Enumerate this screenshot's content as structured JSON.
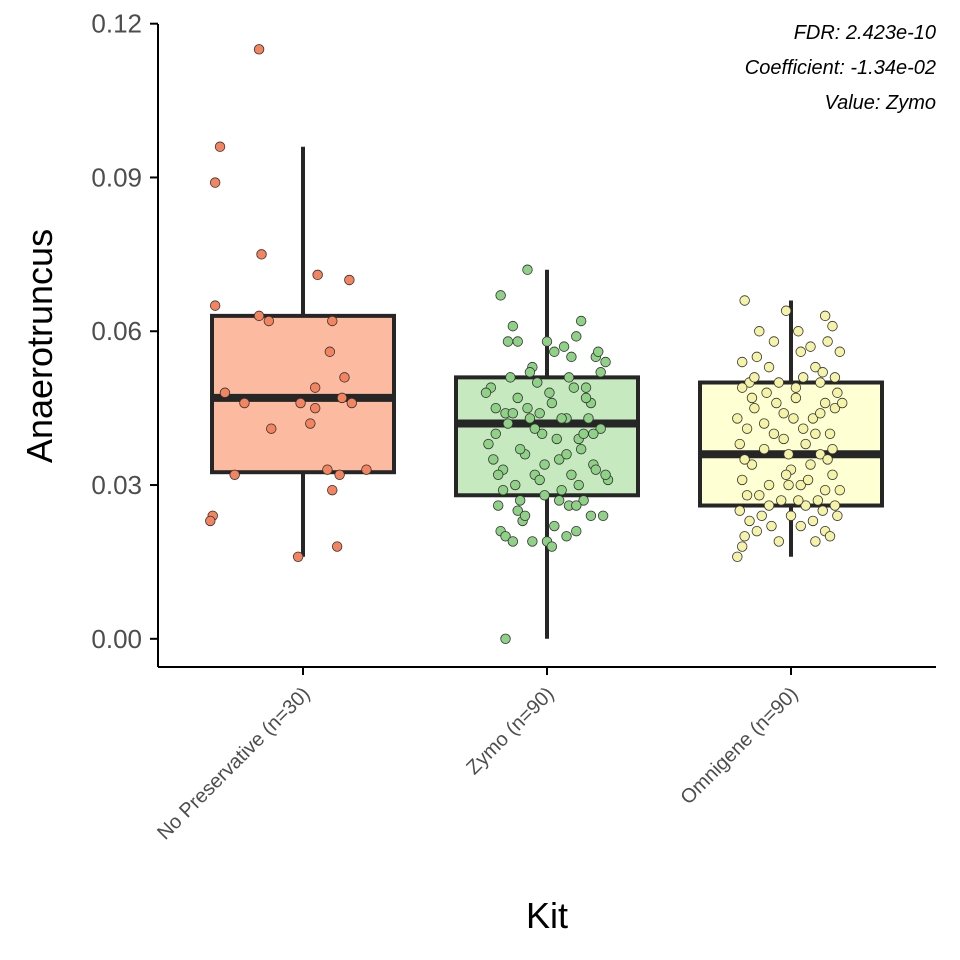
{
  "chart_data": {
    "type": "box",
    "xlabel": "Kit",
    "ylabel": "Anaerotruncus",
    "ylim": [
      -0.0055,
      0.1215
    ],
    "yticks": [
      "0.00",
      "0.03",
      "0.06",
      "0.09",
      "0.12"
    ],
    "ytick_values": [
      0.0,
      0.03,
      0.06,
      0.09,
      0.12
    ],
    "grid": false,
    "annotations": [
      "FDR: 2.423e-10",
      "Coefficient: -1.34e-02",
      "Value: Zymo"
    ],
    "categories": [
      "No Preservative (n=30)",
      "Zymo (n=90)",
      "Omnigene (n=90)"
    ],
    "series": [
      {
        "fill": "#fcbba1",
        "point_color": "#f4845f",
        "box": {
          "whisker_low": 0.016,
          "q1": 0.0325,
          "median": 0.047,
          "q3": 0.063,
          "whisker_high": 0.096
        },
        "points": [
          [
            -0.18,
            0.115
          ],
          [
            -0.34,
            0.096
          ],
          [
            -0.36,
            0.089
          ],
          [
            -0.17,
            0.075
          ],
          [
            0.06,
            0.071
          ],
          [
            0.19,
            0.07
          ],
          [
            -0.36,
            0.065
          ],
          [
            -0.18,
            0.063
          ],
          [
            -0.14,
            0.062
          ],
          [
            0.12,
            0.062
          ],
          [
            0.11,
            0.056
          ],
          [
            0.17,
            0.051
          ],
          [
            -0.32,
            0.048
          ],
          [
            0.05,
            0.049
          ],
          [
            0.16,
            0.047
          ],
          [
            -0.24,
            0.046
          ],
          [
            -0.01,
            0.046
          ],
          [
            0.2,
            0.046
          ],
          [
            0.05,
            0.045
          ],
          [
            0.03,
            0.042
          ],
          [
            -0.13,
            0.041
          ],
          [
            0.1,
            0.033
          ],
          [
            -0.28,
            0.032
          ],
          [
            0.15,
            0.032
          ],
          [
            0.26,
            0.033
          ],
          [
            0.12,
            0.029
          ],
          [
            -0.37,
            0.024
          ],
          [
            -0.38,
            0.023
          ],
          [
            0.14,
            0.018
          ],
          [
            -0.02,
            0.016
          ]
        ]
      },
      {
        "fill": "#c7e9c0",
        "point_color": "#8fd186",
        "box": {
          "whisker_low": 0.0,
          "q1": 0.028,
          "median": 0.042,
          "q3": 0.051,
          "whisker_high": 0.072
        },
        "points": [
          [
            -0.08,
            0.072
          ],
          [
            -0.19,
            0.067
          ],
          [
            -0.14,
            0.061
          ],
          [
            0.14,
            0.062
          ],
          [
            -0.12,
            0.058
          ],
          [
            0.0,
            0.058
          ],
          [
            0.12,
            0.059
          ],
          [
            0.2,
            0.055
          ],
          [
            0.07,
            0.057
          ],
          [
            -0.06,
            0.053
          ],
          [
            -0.15,
            0.051
          ],
          [
            0.09,
            0.051
          ],
          [
            0.24,
            0.054
          ],
          [
            -0.23,
            0.049
          ],
          [
            0.16,
            0.049
          ],
          [
            -0.12,
            0.047
          ],
          [
            0.02,
            0.046
          ],
          [
            0.18,
            0.046
          ],
          [
            -0.17,
            0.044
          ],
          [
            -0.07,
            0.043
          ],
          [
            0.08,
            0.043
          ],
          [
            0.22,
            0.041
          ],
          [
            -0.21,
            0.04
          ],
          [
            -0.02,
            0.04
          ],
          [
            0.13,
            0.039
          ],
          [
            -0.09,
            0.036
          ],
          [
            0.05,
            0.035
          ],
          [
            0.19,
            0.034
          ],
          [
            -0.18,
            0.033
          ],
          [
            -0.05,
            0.032
          ],
          [
            0.1,
            0.032
          ],
          [
            0.25,
            0.031
          ],
          [
            -0.13,
            0.03
          ],
          [
            -0.01,
            0.028
          ],
          [
            0.15,
            0.027
          ],
          [
            -0.2,
            0.026
          ],
          [
            0.09,
            0.026
          ],
          [
            0.23,
            0.024
          ],
          [
            -0.1,
            0.023
          ],
          [
            0.03,
            0.022
          ],
          [
            -0.19,
            0.021
          ],
          [
            0.12,
            0.021
          ],
          [
            -0.06,
            0.019
          ],
          [
            0.0,
            0.019
          ],
          [
            -0.17,
            0.02
          ],
          [
            -0.14,
            0.019
          ],
          [
            0.06,
            0.029
          ],
          [
            0.2,
            0.033
          ],
          [
            -0.22,
            0.035
          ],
          [
            0.17,
            0.043
          ],
          [
            -0.04,
            0.05
          ],
          [
            0.11,
            0.049
          ],
          [
            -0.16,
            0.058
          ],
          [
            0.03,
            0.056
          ],
          [
            -0.08,
            0.045
          ],
          [
            0.14,
            0.037
          ],
          [
            -0.11,
            0.027
          ],
          [
            0.08,
            0.02
          ],
          [
            -0.03,
            0.044
          ],
          [
            0.24,
            0.032
          ],
          [
            -0.2,
            0.032
          ],
          [
            0.06,
            0.043
          ],
          [
            0.18,
            0.024
          ],
          [
            -0.25,
            0.048
          ],
          [
            0.21,
            0.056
          ],
          [
            -0.01,
            0.034
          ],
          [
            -0.12,
            0.025
          ],
          [
            0.13,
            0.03
          ],
          [
            0.04,
            0.039
          ],
          [
            -0.07,
            0.052
          ],
          [
            -0.16,
            0.042
          ],
          [
            0.02,
            0.018
          ],
          [
            -0.09,
            0.024
          ],
          [
            0.16,
            0.047
          ],
          [
            -0.24,
            0.038
          ],
          [
            0.1,
            0.055
          ],
          [
            -0.14,
            0.044
          ],
          [
            0.05,
            0.027
          ],
          [
            0.19,
            0.04
          ],
          [
            -0.03,
            0.031
          ],
          [
            0.08,
            0.036
          ],
          [
            -0.18,
            0.029
          ],
          [
            0.22,
            0.052
          ],
          [
            -0.05,
            0.041
          ],
          [
            0.12,
            0.026
          ],
          [
            -0.21,
            0.045
          ],
          [
            0.01,
            0.048
          ],
          [
            0.15,
            0.04
          ],
          [
            -0.11,
            0.037
          ],
          [
            -0.17,
            0.0
          ]
        ]
      },
      {
        "fill": "#ffffd4",
        "point_color": "#f5f3a8",
        "box": {
          "whisker_low": 0.016,
          "q1": 0.026,
          "median": 0.036,
          "q3": 0.05,
          "whisker_high": 0.066
        },
        "points": [
          [
            -0.19,
            0.066
          ],
          [
            0.14,
            0.063
          ],
          [
            -0.02,
            0.064
          ],
          [
            0.17,
            0.061
          ],
          [
            0.03,
            0.06
          ],
          [
            -0.13,
            0.06
          ],
          [
            0.15,
            0.058
          ],
          [
            -0.14,
            0.055
          ],
          [
            0.04,
            0.056
          ],
          [
            0.2,
            0.056
          ],
          [
            -0.2,
            0.054
          ],
          [
            -0.09,
            0.053
          ],
          [
            0.1,
            0.053
          ],
          [
            0.05,
            0.051
          ],
          [
            -0.17,
            0.05
          ],
          [
            -0.05,
            0.05
          ],
          [
            0.13,
            0.052
          ],
          [
            0.19,
            0.048
          ],
          [
            -0.2,
            0.049
          ],
          [
            -0.1,
            0.048
          ],
          [
            0.02,
            0.047
          ],
          [
            0.14,
            0.046
          ],
          [
            0.18,
            0.045
          ],
          [
            -0.15,
            0.045
          ],
          [
            -0.03,
            0.044
          ],
          [
            0.09,
            0.043
          ],
          [
            -0.18,
            0.041
          ],
          [
            -0.07,
            0.04
          ],
          [
            0.05,
            0.041
          ],
          [
            0.16,
            0.04
          ],
          [
            -0.21,
            0.038
          ],
          [
            -0.11,
            0.037
          ],
          [
            -0.01,
            0.036
          ],
          [
            0.12,
            0.036
          ],
          [
            -0.16,
            0.034
          ],
          [
            0.0,
            0.033
          ],
          [
            0.08,
            0.034
          ],
          [
            0.17,
            0.032
          ],
          [
            -0.2,
            0.031
          ],
          [
            -0.09,
            0.03
          ],
          [
            0.04,
            0.03
          ],
          [
            0.14,
            0.029
          ],
          [
            0.2,
            0.029
          ],
          [
            -0.18,
            0.028
          ],
          [
            -0.04,
            0.027
          ],
          [
            0.06,
            0.026
          ],
          [
            0.11,
            0.027
          ],
          [
            0.18,
            0.026
          ],
          [
            -0.21,
            0.025
          ],
          [
            -0.12,
            0.024
          ],
          [
            0.0,
            0.024
          ],
          [
            0.09,
            0.023
          ],
          [
            0.19,
            0.024
          ],
          [
            -0.17,
            0.023
          ],
          [
            -0.08,
            0.022
          ],
          [
            0.04,
            0.022
          ],
          [
            0.14,
            0.021
          ],
          [
            -0.19,
            0.02
          ],
          [
            -0.05,
            0.019
          ],
          [
            0.16,
            0.02
          ],
          [
            -0.22,
            0.016
          ],
          [
            -0.2,
            0.018
          ],
          [
            0.1,
            0.019
          ],
          [
            -0.14,
            0.021
          ],
          [
            0.07,
            0.031
          ],
          [
            -0.03,
            0.039
          ],
          [
            0.12,
            0.044
          ],
          [
            -0.16,
            0.047
          ],
          [
            0.02,
            0.049
          ],
          [
            0.18,
            0.051
          ],
          [
            -0.07,
            0.058
          ],
          [
            0.08,
            0.057
          ],
          [
            -0.11,
            0.042
          ],
          [
            0.15,
            0.035
          ],
          [
            -0.02,
            0.032
          ],
          [
            0.21,
            0.046
          ],
          [
            -0.19,
            0.035
          ],
          [
            0.06,
            0.038
          ],
          [
            -0.13,
            0.028
          ],
          [
            0.13,
            0.025
          ],
          [
            -0.06,
            0.046
          ],
          [
            0.03,
            0.027
          ],
          [
            -0.22,
            0.043
          ],
          [
            0.1,
            0.04
          ],
          [
            -0.09,
            0.026
          ],
          [
            0.17,
            0.037
          ],
          [
            -0.15,
            0.051
          ],
          [
            0.01,
            0.043
          ],
          [
            -0.01,
            0.03
          ],
          [
            0.12,
            0.05
          ]
        ]
      }
    ]
  }
}
